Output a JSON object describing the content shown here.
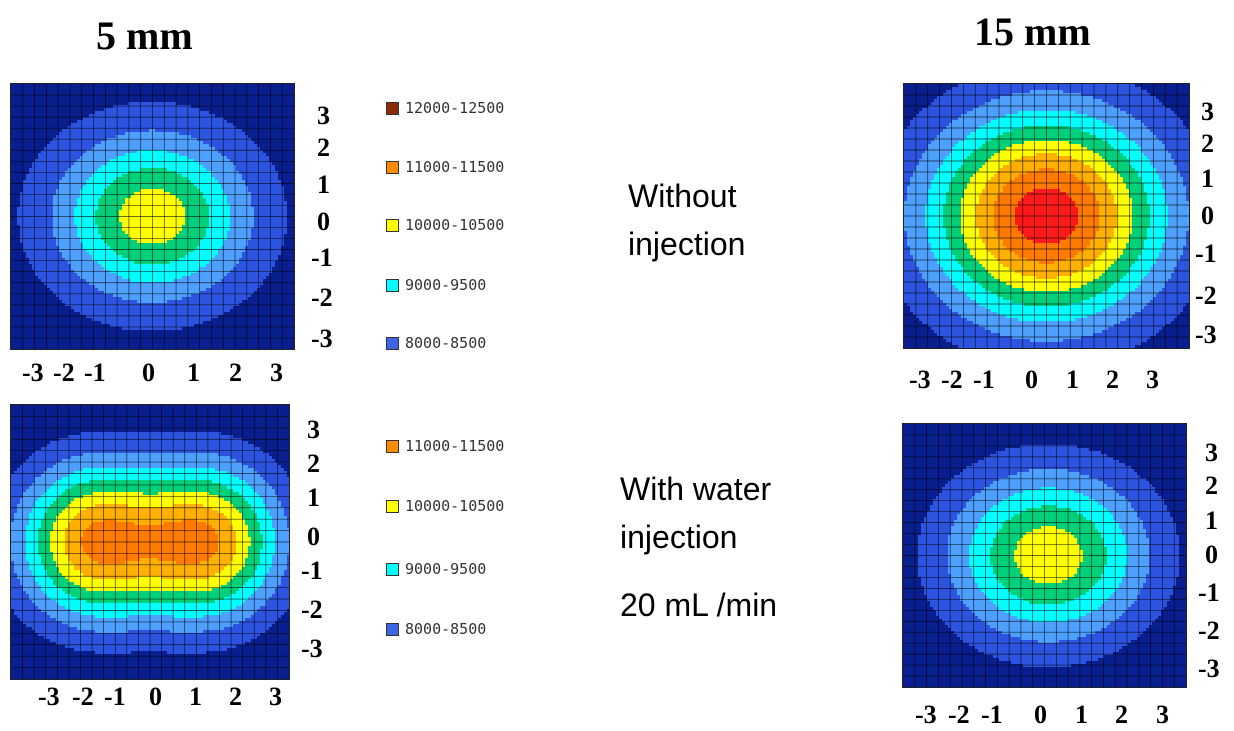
{
  "titles": {
    "left": "5 mm",
    "right": "15 mm"
  },
  "notes": {
    "top": [
      "Without",
      "injection"
    ],
    "bottom": [
      "With water",
      "injection"
    ],
    "rate": "20 mL /min"
  },
  "legend_top": [
    {
      "label": "12000-12500",
      "color": "#8b2a06"
    },
    {
      "label": "11000-11500",
      "color": "#ff8c00"
    },
    {
      "label": "10000-10500",
      "color": "#ffff00"
    },
    {
      "label": "9000-9500",
      "color": "#00ffff"
    },
    {
      "label": "8000-8500",
      "color": "#3d63e6"
    }
  ],
  "legend_bottom": [
    {
      "label": "11000-11500",
      "color": "#ff8c00"
    },
    {
      "label": "10000-10500",
      "color": "#ffff00"
    },
    {
      "label": "9000-9500",
      "color": "#00ffff"
    },
    {
      "label": "8000-8500",
      "color": "#3d63e6"
    }
  ],
  "colors": {
    "palette": [
      "#0a1f8f",
      "#2d54e0",
      "#4ea0ff",
      "#00ffff",
      "#00d07a",
      "#ffff00",
      "#ffb000",
      "#ff7a00",
      "#ff1a1a",
      "#8b2a06"
    ],
    "grid": "#000000",
    "contour": "#000000"
  },
  "chart_data": [
    {
      "type": "heatmap",
      "panel": "5 mm, without injection",
      "x_ticks": [
        "-3",
        "-2",
        "-1",
        "0",
        "1",
        "2",
        "3"
      ],
      "y_ticks": [
        "3",
        "2",
        "1",
        "0",
        "-1",
        "-2",
        "-3"
      ],
      "xlim": [
        -3.6,
        3.6
      ],
      "ylim": [
        -3.6,
        3.6
      ],
      "field": "single",
      "peaks": [
        {
          "x": 0,
          "y": 0,
          "amp": 5.3,
          "sx": 1.7,
          "sy": 1.55
        }
      ],
      "base": 0.3,
      "level_range": "8000-12500"
    },
    {
      "type": "heatmap",
      "panel": "15 mm, without injection",
      "x_ticks": [
        "-3",
        "-2",
        "-1",
        "0",
        "1",
        "2",
        "3"
      ],
      "y_ticks": [
        "3",
        "2",
        "1",
        "0",
        "-1",
        "-2",
        "-3"
      ],
      "xlim": [
        -3.6,
        3.6
      ],
      "ylim": [
        -3.6,
        3.6
      ],
      "field": "single",
      "peaks": [
        {
          "x": 0,
          "y": 0,
          "amp": 8.6,
          "sx": 2.1,
          "sy": 2.0
        }
      ],
      "base": 0.0,
      "level_range": "8000-12000"
    },
    {
      "type": "heatmap",
      "panel": "5 mm, with water injection 20 mL/min",
      "x_ticks": [
        "-3",
        "-2",
        "-1",
        "0",
        "1",
        "2",
        "3"
      ],
      "y_ticks": [
        "3",
        "2",
        "1",
        "0",
        "-1",
        "-2",
        "-3"
      ],
      "xlim": [
        -3.6,
        3.6
      ],
      "ylim": [
        -3.6,
        3.6
      ],
      "field": "double",
      "peaks": [
        {
          "x": -1.5,
          "y": 0,
          "amp": 6.8,
          "sx": 1.35,
          "sy": 1.45
        },
        {
          "x": 1.5,
          "y": 0,
          "amp": 6.8,
          "sx": 1.35,
          "sy": 1.45
        }
      ],
      "base": 0.0,
      "level_range": "8000-11500"
    },
    {
      "type": "heatmap",
      "panel": "15 mm, with water injection 20 mL/min",
      "x_ticks": [
        "-3",
        "-2",
        "-1",
        "0",
        "1",
        "2",
        "3"
      ],
      "y_ticks": [
        "3",
        "2",
        "1",
        "0",
        "-1",
        "-2",
        "-3"
      ],
      "xlim": [
        -3.6,
        3.6
      ],
      "ylim": [
        -3.6,
        3.6
      ],
      "field": "single",
      "peaks": [
        {
          "x": 0.1,
          "y": 0,
          "amp": 5.6,
          "sx": 1.8,
          "sy": 1.65
        }
      ],
      "base": 0.0,
      "level_range": "8000-10500"
    }
  ]
}
